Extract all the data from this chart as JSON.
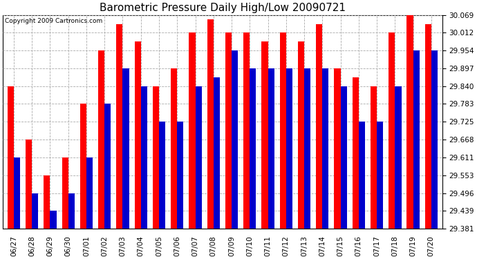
{
  "title": "Barometric Pressure Daily High/Low 20090721",
  "copyright": "Copyright 2009 Cartronics.com",
  "dates": [
    "06/27",
    "06/28",
    "06/29",
    "06/30",
    "07/01",
    "07/02",
    "07/03",
    "07/04",
    "07/05",
    "07/06",
    "07/07",
    "07/08",
    "07/09",
    "07/10",
    "07/11",
    "07/12",
    "07/13",
    "07/14",
    "07/15",
    "07/16",
    "07/17",
    "07/18",
    "07/19",
    "07/20"
  ],
  "highs": [
    29.84,
    29.668,
    29.553,
    29.611,
    29.783,
    29.954,
    30.04,
    29.983,
    29.84,
    29.897,
    30.012,
    30.055,
    30.012,
    30.012,
    29.983,
    30.012,
    29.983,
    30.04,
    29.897,
    29.868,
    29.84,
    30.012,
    30.069,
    30.04
  ],
  "lows": [
    29.611,
    29.496,
    29.439,
    29.496,
    29.611,
    29.783,
    29.897,
    29.84,
    29.725,
    29.725,
    29.84,
    29.868,
    29.954,
    29.897,
    29.897,
    29.897,
    29.897,
    29.897,
    29.84,
    29.725,
    29.725,
    29.84,
    29.954,
    29.954
  ],
  "high_color": "#ff0000",
  "low_color": "#0000cc",
  "background_color": "#ffffff",
  "plot_bg_color": "#ffffff",
  "grid_color": "#aaaaaa",
  "title_fontsize": 11,
  "yticks": [
    29.381,
    29.439,
    29.496,
    29.553,
    29.611,
    29.668,
    29.725,
    29.783,
    29.84,
    29.897,
    29.954,
    30.012,
    30.069
  ],
  "ymin": 29.381,
  "ymax": 30.069,
  "bar_width": 0.35
}
